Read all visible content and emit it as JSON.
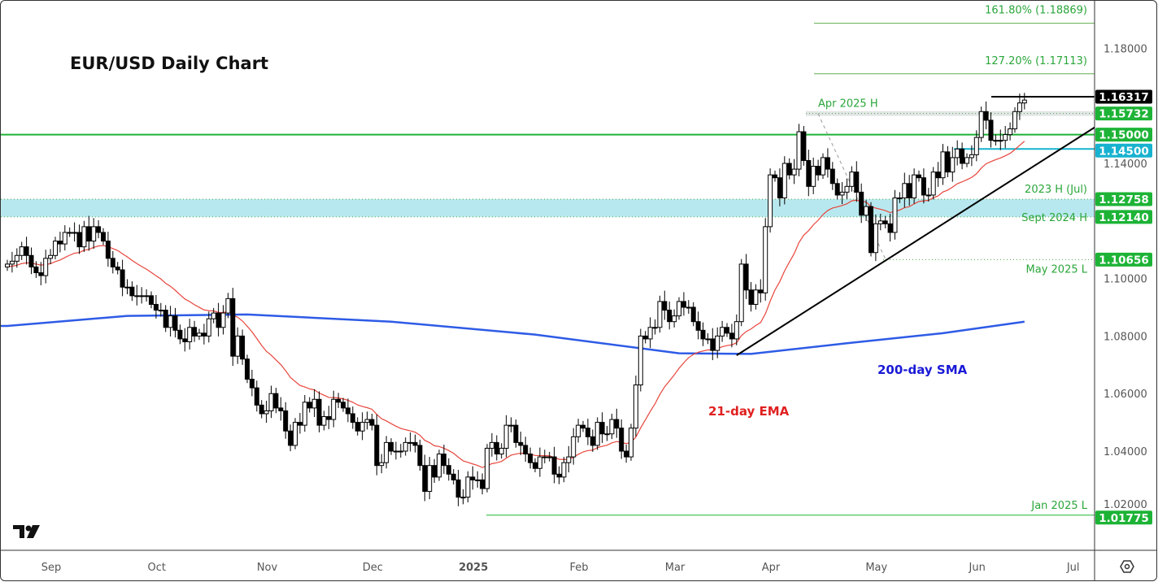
{
  "chart_data": {
    "type": "candlestick",
    "title": "EUR/USD Daily Chart",
    "ylim": [
      1.008,
      1.197
    ],
    "y_ticks": [
      "1.18000",
      "1.14000",
      "1.10000",
      "1.08000",
      "1.06000",
      "1.04000",
      "1.02000"
    ],
    "y_tick_values": [
      1.18,
      1.14,
      1.1,
      1.08,
      1.06,
      1.04,
      1.02
    ],
    "x_ticks": [
      "Sep",
      "Oct",
      "Nov",
      "Dec",
      "2025",
      "Feb",
      "Mar",
      "Apr",
      "May",
      "Jun",
      "Jul"
    ],
    "x_tick_candle_index": [
      0,
      22,
      45,
      67,
      88,
      110,
      130,
      150,
      172,
      193,
      213
    ],
    "open_first": 1.104,
    "wick": 0.0025,
    "closes": [
      1.105,
      1.106,
      1.108,
      1.111,
      1.108,
      1.104,
      1.102,
      1.101,
      1.107,
      1.108,
      1.113,
      1.112,
      1.116,
      1.116,
      1.116,
      1.111,
      1.118,
      1.113,
      1.118,
      1.116,
      1.113,
      1.107,
      1.104,
      1.103,
      1.097,
      1.097,
      1.094,
      1.094,
      1.094,
      1.094,
      1.091,
      1.089,
      1.089,
      1.083,
      1.087,
      1.082,
      1.079,
      1.078,
      1.083,
      1.08,
      1.081,
      1.08,
      1.086,
      1.088,
      1.083,
      1.088,
      1.093,
      1.073,
      1.08,
      1.072,
      1.065,
      1.062,
      1.056,
      1.053,
      1.054,
      1.06,
      1.055,
      1.054,
      1.047,
      1.042,
      1.05,
      1.049,
      1.057,
      1.055,
      1.058,
      1.049,
      1.052,
      1.051,
      1.058,
      1.057,
      1.055,
      1.053,
      1.05,
      1.047,
      1.05,
      1.051,
      1.049,
      1.035,
      1.036,
      1.043,
      1.04,
      1.04,
      1.04,
      1.043,
      1.043,
      1.042,
      1.035,
      1.026,
      1.035,
      1.031,
      1.039,
      1.035,
      1.032,
      1.03,
      1.024,
      1.024,
      1.031,
      1.03,
      1.03,
      1.027,
      1.041,
      1.043,
      1.039,
      1.041,
      1.049,
      1.049,
      1.043,
      1.042,
      1.039,
      1.036,
      1.034,
      1.038,
      1.038,
      1.038,
      1.032,
      1.031,
      1.036,
      1.038,
      1.045,
      1.049,
      1.048,
      1.045,
      1.042,
      1.05,
      1.046,
      1.046,
      1.051,
      1.048,
      1.04,
      1.038,
      1.048,
      1.063,
      1.08,
      1.079,
      1.083,
      1.083,
      1.092,
      1.089,
      1.085,
      1.087,
      1.092,
      1.09,
      1.09,
      1.085,
      1.082,
      1.079,
      1.079,
      1.075,
      1.08,
      1.083,
      1.081,
      1.079,
      1.085,
      1.105,
      1.096,
      1.091,
      1.096,
      1.095,
      1.118,
      1.136,
      1.135,
      1.128,
      1.14,
      1.136,
      1.138,
      1.151,
      1.141,
      1.132,
      1.139,
      1.136,
      1.142,
      1.138,
      1.133,
      1.129,
      1.13,
      1.132,
      1.137,
      1.13,
      1.122,
      1.125,
      1.109,
      1.119,
      1.12,
      1.119,
      1.116,
      1.128,
      1.128,
      1.133,
      1.128,
      1.136,
      1.135,
      1.129,
      1.129,
      1.137,
      1.135,
      1.144,
      1.137,
      1.142,
      1.145,
      1.14,
      1.142,
      1.143,
      1.149,
      1.158,
      1.155,
      1.148,
      1.148,
      1.148,
      1.15,
      1.152,
      1.158,
      1.161,
      1.162
    ],
    "sma200": {
      "name": "200-day SMA",
      "points": [
        [
          0,
          1.0835
        ],
        [
          25,
          1.087
        ],
        [
          50,
          1.0875
        ],
        [
          80,
          1.085
        ],
        [
          110,
          1.0805
        ],
        [
          140,
          1.074
        ],
        [
          155,
          1.0738
        ],
        [
          175,
          1.0775
        ],
        [
          195,
          1.081
        ],
        [
          212,
          1.085
        ]
      ],
      "color": "#2e5be6"
    },
    "ema21": {
      "name": "21-day EMA",
      "color": "#e8453c"
    },
    "levels": [
      {
        "label": "161.80% (1.18869)",
        "value": 1.18869,
        "tag": null,
        "style": "fib"
      },
      {
        "label": "127.20% (1.17113)",
        "value": 1.17113,
        "tag": null,
        "style": "fib"
      },
      {
        "label": "",
        "value": 1.16317,
        "tag": "1.16317",
        "style": "black"
      },
      {
        "label": "Apr 2025 H",
        "value": 1.15732,
        "tag": "1.15732",
        "style": "dotted"
      },
      {
        "label": "",
        "value": 1.15,
        "tag": "1.15000",
        "style": "green"
      },
      {
        "label": "",
        "value": 1.145,
        "tag": "1.14500",
        "style": "cyan"
      },
      {
        "label": "2023 H (Jul)",
        "value": 1.12758,
        "tag": "1.12758",
        "style": "zone-top"
      },
      {
        "label": "Sept 2024 H",
        "value": 1.1214,
        "tag": "1.12140",
        "style": "zone-bottom"
      },
      {
        "label": "May 2025 L",
        "value": 1.10656,
        "tag": "1.10656",
        "style": "dotted"
      },
      {
        "label": "Jan 2025 L",
        "value": 1.01775,
        "tag": "1.01775",
        "style": "green-thin"
      }
    ],
    "trendline": {
      "from": [
        152,
        1.0733
      ],
      "to": [
        228,
        1.1525
      ]
    },
    "annotations": {
      "ema_label": "21-day EMA",
      "sma_label": "200-day SMA"
    },
    "colors": {
      "up": "#ffffff",
      "down": "#000000",
      "green": "#1db336",
      "cyan": "#17b2cf",
      "zone": "#b8e8ef"
    }
  },
  "logo": "TV",
  "settings_icon": "gear-icon"
}
